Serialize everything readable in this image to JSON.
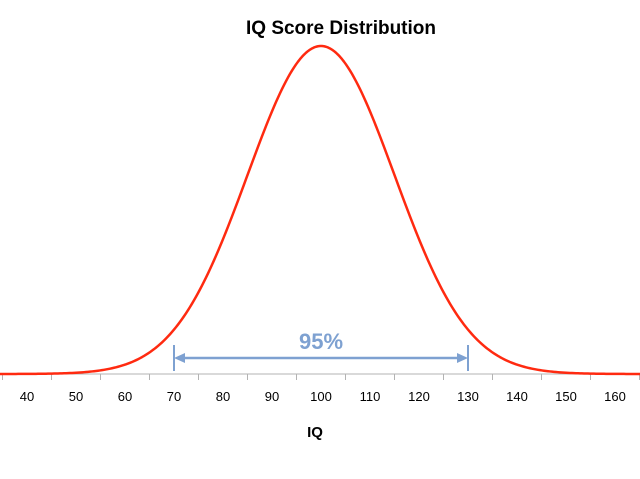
{
  "chart_data": {
    "type": "line",
    "title": "IQ Score Distribution",
    "xlabel": "IQ",
    "ylabel": "",
    "xlim": [
      34,
      166
    ],
    "ticks": [
      40,
      50,
      60,
      70,
      80,
      90,
      100,
      110,
      120,
      130,
      140,
      150,
      160
    ],
    "distribution": {
      "kind": "normal",
      "mean": 100,
      "sd": 15
    },
    "grid": false,
    "legend": "none",
    "annotation": {
      "label": "95%",
      "from": 70,
      "to": 130
    },
    "colors": {
      "curve": "#ff2a10",
      "annotation": "#7ea1d1",
      "axis": "#b3b3b3"
    }
  }
}
